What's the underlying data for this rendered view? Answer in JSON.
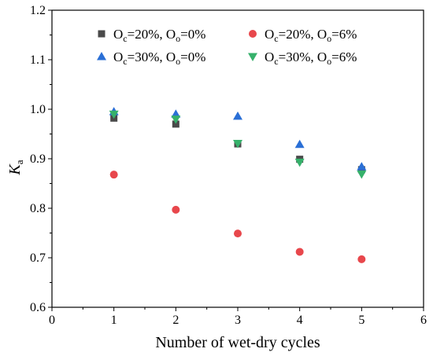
{
  "chart_data": {
    "type": "scatter",
    "title": "",
    "xlabel": "Number of wet-dry cycles",
    "ylabel": {
      "main": "K",
      "sub": "a"
    },
    "xlim": [
      0,
      6
    ],
    "ylim": [
      0.6,
      1.2
    ],
    "xticks": [
      0,
      1,
      2,
      3,
      4,
      5,
      6
    ],
    "yticks": [
      0.6,
      0.7,
      0.8,
      0.9,
      1.0,
      1.1,
      1.2
    ],
    "xtick_labels": [
      "0",
      "1",
      "2",
      "3",
      "4",
      "5",
      "6"
    ],
    "ytick_labels": [
      "0.6",
      "0.7",
      "0.8",
      "0.9",
      "1.0",
      "1.1",
      "1.2"
    ],
    "grid": false,
    "legend_position": "top",
    "x": [
      1,
      2,
      3,
      4,
      5
    ],
    "series": [
      {
        "name": "Oc=20%, Oo=0%",
        "label_parts": [
          [
            "O",
            ""
          ],
          [
            "c",
            "sub"
          ],
          [
            "=20%, O",
            ""
          ],
          [
            "o",
            "sub"
          ],
          [
            "=0%",
            ""
          ]
        ],
        "marker": "square",
        "color": "#4a4a4a",
        "values": [
          0.982,
          0.97,
          0.93,
          0.899,
          0.878
        ]
      },
      {
        "name": "Oc=20%, Oo=6%",
        "label_parts": [
          [
            "O",
            ""
          ],
          [
            "c",
            "sub"
          ],
          [
            "=20%, O",
            ""
          ],
          [
            "o",
            "sub"
          ],
          [
            "=6%",
            ""
          ]
        ],
        "marker": "circle",
        "color": "#e8474c",
        "values": [
          0.868,
          0.797,
          0.749,
          0.712,
          0.697
        ]
      },
      {
        "name": "Oc=30%, Oo=0%",
        "label_parts": [
          [
            "O",
            ""
          ],
          [
            "c",
            "sub"
          ],
          [
            "=30%, O",
            ""
          ],
          [
            "o",
            "sub"
          ],
          [
            "=0%",
            ""
          ]
        ],
        "marker": "triangle-up",
        "color": "#2a6fd6",
        "values": [
          0.995,
          0.99,
          0.986,
          0.929,
          0.884
        ]
      },
      {
        "name": "Oc=30%, Oo=6%",
        "label_parts": [
          [
            "O",
            ""
          ],
          [
            "c",
            "sub"
          ],
          [
            "=30%, O",
            ""
          ],
          [
            "o",
            "sub"
          ],
          [
            "=6%",
            ""
          ]
        ],
        "marker": "triangle-down",
        "color": "#36b16b",
        "values": [
          0.99,
          0.98,
          0.931,
          0.893,
          0.869
        ]
      }
    ]
  }
}
